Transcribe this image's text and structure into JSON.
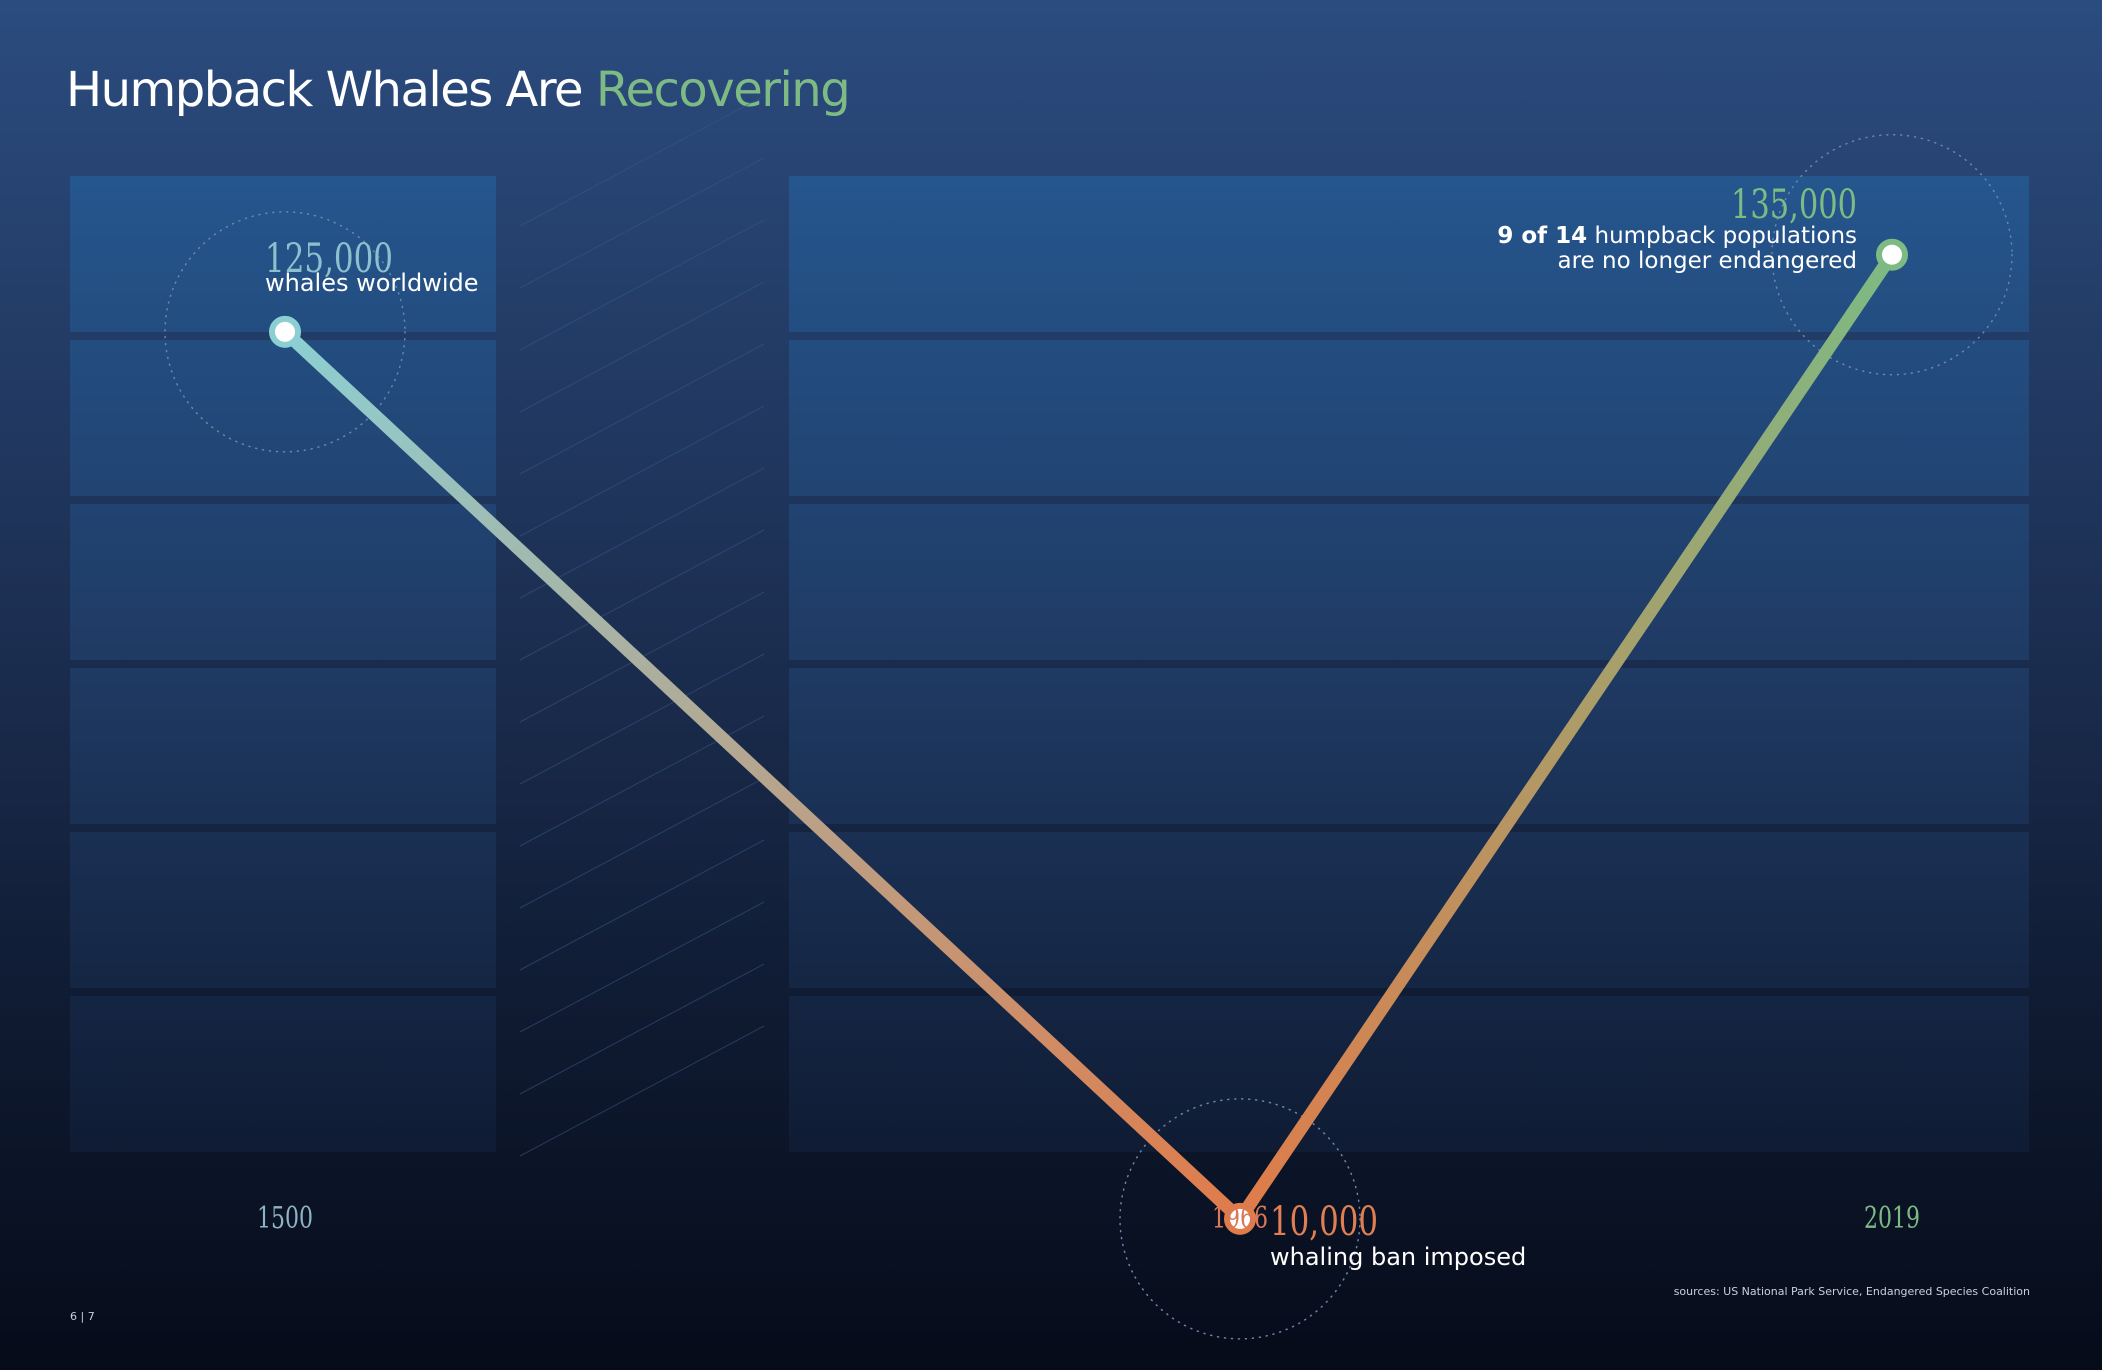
{
  "title": {
    "main": "Humpback Whales Are ",
    "accent": "Recovering"
  },
  "chart_data": {
    "type": "line",
    "x": [
      "1500",
      "1966",
      "2019"
    ],
    "values": [
      125000,
      10000,
      135000
    ],
    "ylim": [
      0,
      150000
    ],
    "annotations": [
      {
        "value_label": "125,000",
        "line1": "whales worldwide",
        "color": "#8cc0cc"
      },
      {
        "value_label": "10,000",
        "line1": "whaling ban imposed",
        "color": "#e07f52"
      },
      {
        "value_label": "135,000",
        "bold_prefix": "9 of 14",
        "line1": " humpback populations",
        "line2": "are no longer endangered",
        "color": "#7dba84"
      }
    ],
    "x_label_colors": [
      "#8cb4c4",
      "#d9795a",
      "#7dba84"
    ],
    "line_gradient": [
      "#8ccfd2",
      "#e07b4a",
      "#7dba84"
    ],
    "grid": true,
    "xlabel": "",
    "ylabel": ""
  },
  "footer": {
    "page": "6 | 7",
    "sources": "sources: US National Park Service, Endangered Species Coalition"
  }
}
